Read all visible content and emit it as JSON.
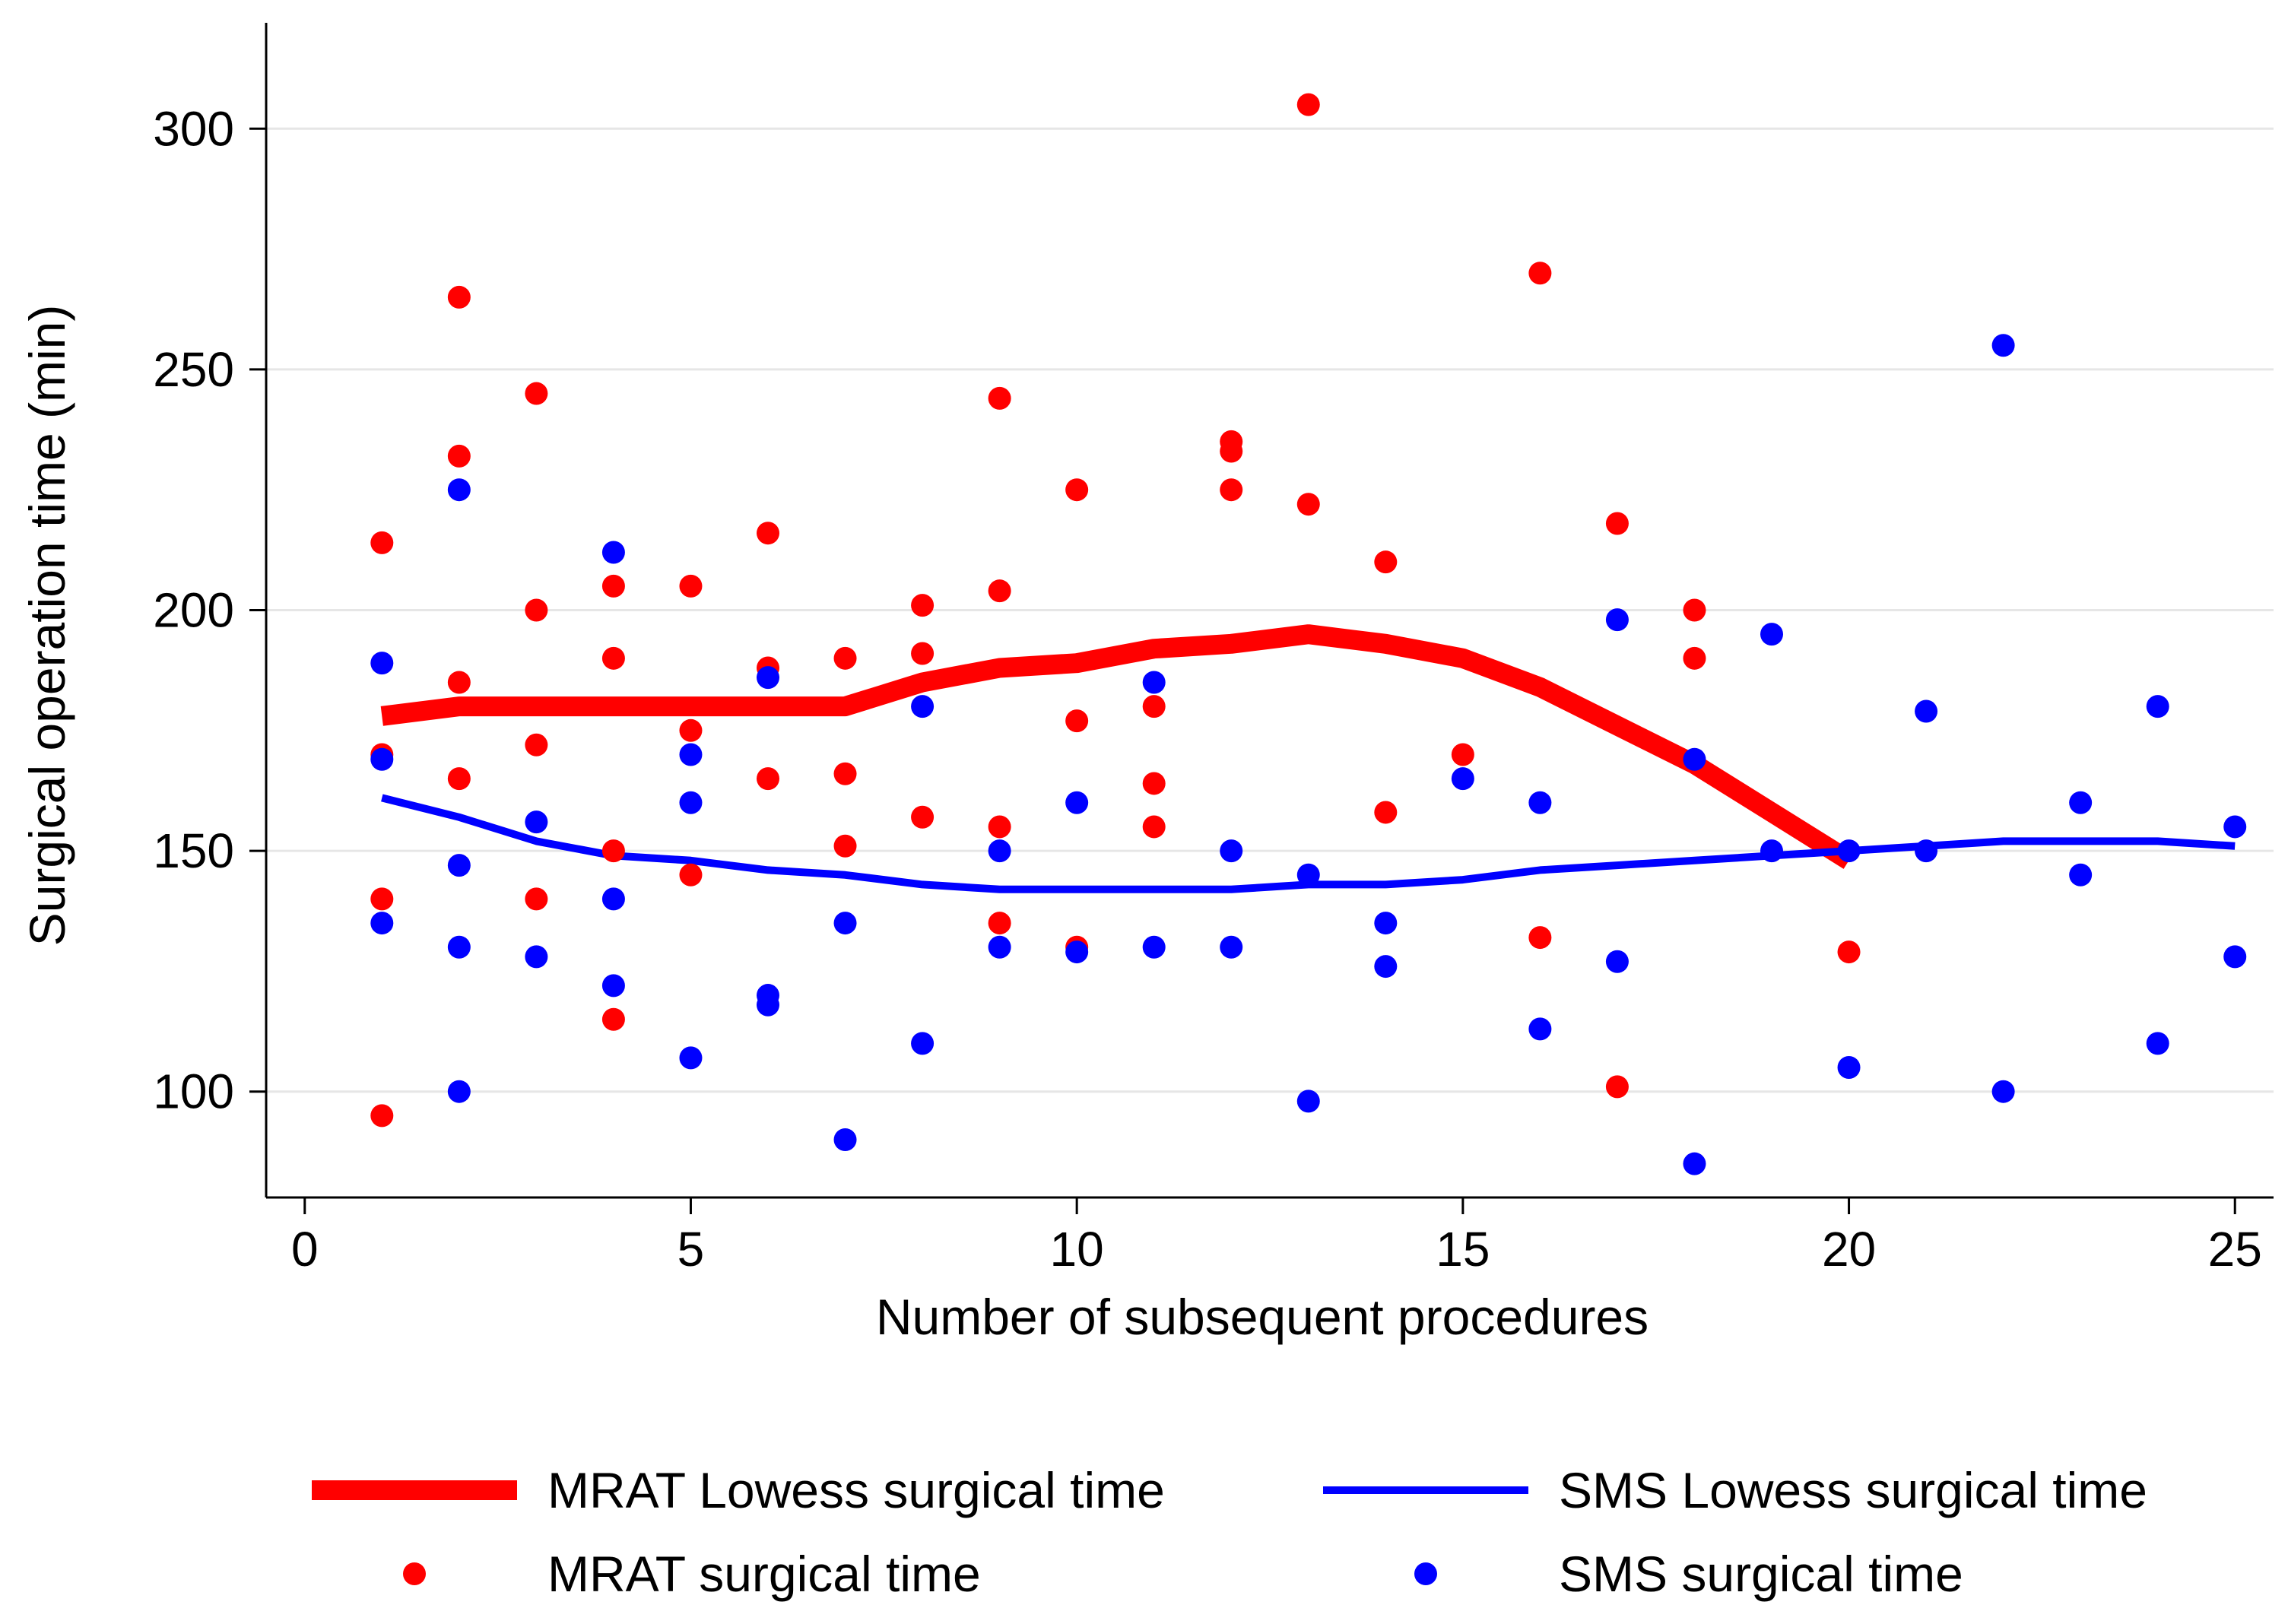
{
  "chart_data": {
    "type": "scatter",
    "title": "",
    "xlabel": "Number of subsequent procedures",
    "ylabel": "Surgical operation time (min)",
    "xlim": [
      -0.5,
      25.5
    ],
    "ylim": [
      78,
      322
    ],
    "xticks": [
      0,
      5,
      10,
      15,
      20,
      25
    ],
    "yticks": [
      100,
      150,
      200,
      250,
      300
    ],
    "grid": true,
    "colors": {
      "mrat": "#ff0000",
      "sms": "#0000ff",
      "grid": "#e6e6e6",
      "axis": "#000000"
    },
    "series": [
      {
        "name": "MRAT Lowess surgical time",
        "kind": "line",
        "color": "#ff0000",
        "x": [
          1,
          2,
          3,
          4,
          5,
          6,
          7,
          8,
          9,
          10,
          11,
          12,
          13,
          14,
          15,
          16,
          17,
          18,
          19,
          20
        ],
        "y": [
          178,
          180,
          180,
          180,
          180,
          180,
          180,
          185,
          188,
          189,
          192,
          193,
          195,
          193,
          190,
          184,
          176,
          168,
          158,
          148
        ]
      },
      {
        "name": "SMS Lowess surgical time",
        "kind": "line",
        "color": "#0000ff",
        "x": [
          1,
          2,
          3,
          4,
          5,
          6,
          7,
          8,
          9,
          10,
          11,
          12,
          13,
          14,
          15,
          16,
          17,
          18,
          19,
          20,
          21,
          22,
          23,
          24,
          25
        ],
        "y": [
          161,
          157,
          152,
          149,
          148,
          146,
          145,
          143,
          142,
          142,
          142,
          142,
          143,
          143,
          144,
          146,
          147,
          148,
          149,
          150,
          151,
          152,
          152,
          152,
          151
        ]
      },
      {
        "name": "MRAT surgical time",
        "kind": "scatter",
        "color": "#ff0000",
        "points": [
          [
            1,
            214
          ],
          [
            1,
            170
          ],
          [
            1,
            140
          ],
          [
            1,
            95
          ],
          [
            2,
            265
          ],
          [
            2,
            232
          ],
          [
            2,
            185
          ],
          [
            2,
            165
          ],
          [
            3,
            245
          ],
          [
            3,
            200
          ],
          [
            3,
            172
          ],
          [
            3,
            140
          ],
          [
            4,
            205
          ],
          [
            4,
            190
          ],
          [
            4,
            150
          ],
          [
            4,
            115
          ],
          [
            5,
            205
          ],
          [
            5,
            175
          ],
          [
            5,
            145
          ],
          [
            6,
            216
          ],
          [
            6,
            188
          ],
          [
            6,
            165
          ],
          [
            7,
            190
          ],
          [
            7,
            166
          ],
          [
            7,
            151
          ],
          [
            8,
            201
          ],
          [
            8,
            191
          ],
          [
            8,
            157
          ],
          [
            9,
            244
          ],
          [
            9,
            204
          ],
          [
            9,
            155
          ],
          [
            9,
            135
          ],
          [
            10,
            225
          ],
          [
            10,
            177
          ],
          [
            10,
            130
          ],
          [
            11,
            180
          ],
          [
            11,
            164
          ],
          [
            11,
            155
          ],
          [
            12,
            235
          ],
          [
            12,
            233
          ],
          [
            12,
            225
          ],
          [
            13,
            305
          ],
          [
            13,
            222
          ],
          [
            14,
            210
          ],
          [
            14,
            158
          ],
          [
            15,
            170
          ],
          [
            16,
            270
          ],
          [
            16,
            132
          ],
          [
            17,
            218
          ],
          [
            17,
            101
          ],
          [
            18,
            200
          ],
          [
            18,
            190
          ],
          [
            20,
            129
          ]
        ]
      },
      {
        "name": "SMS surgical time",
        "kind": "scatter",
        "color": "#0000ff",
        "points": [
          [
            1,
            189
          ],
          [
            1,
            169
          ],
          [
            1,
            135
          ],
          [
            2,
            225
          ],
          [
            2,
            147
          ],
          [
            2,
            130
          ],
          [
            2,
            100
          ],
          [
            3,
            156
          ],
          [
            3,
            128
          ],
          [
            4,
            212
          ],
          [
            4,
            140
          ],
          [
            4,
            122
          ],
          [
            5,
            170
          ],
          [
            5,
            160
          ],
          [
            5,
            107
          ],
          [
            6,
            186
          ],
          [
            6,
            120
          ],
          [
            6,
            118
          ],
          [
            7,
            135
          ],
          [
            7,
            90
          ],
          [
            8,
            180
          ],
          [
            8,
            110
          ],
          [
            9,
            150
          ],
          [
            9,
            130
          ],
          [
            10,
            160
          ],
          [
            10,
            129
          ],
          [
            11,
            185
          ],
          [
            11,
            130
          ],
          [
            12,
            150
          ],
          [
            12,
            130
          ],
          [
            13,
            145
          ],
          [
            13,
            98
          ],
          [
            14,
            135
          ],
          [
            14,
            126
          ],
          [
            15,
            165
          ],
          [
            16,
            160
          ],
          [
            16,
            113
          ],
          [
            17,
            198
          ],
          [
            17,
            127
          ],
          [
            18,
            169
          ],
          [
            18,
            85
          ],
          [
            19,
            195
          ],
          [
            19,
            150
          ],
          [
            20,
            150
          ],
          [
            20,
            105
          ],
          [
            21,
            179
          ],
          [
            21,
            150
          ],
          [
            22,
            255
          ],
          [
            22,
            100
          ],
          [
            23,
            160
          ],
          [
            23,
            145
          ],
          [
            24,
            180
          ],
          [
            24,
            110
          ],
          [
            25,
            155
          ],
          [
            25,
            128
          ]
        ]
      }
    ],
    "legend": {
      "position": "bottom",
      "columns": 2,
      "entries": [
        {
          "label": "MRAT Lowess surgical time",
          "symbol": "thick-line",
          "color": "#ff0000"
        },
        {
          "label": "SMS Lowess surgical time",
          "symbol": "line",
          "color": "#0000ff"
        },
        {
          "label": "MRAT surgical time",
          "symbol": "dot",
          "color": "#ff0000"
        },
        {
          "label": "SMS surgical time",
          "symbol": "dot",
          "color": "#0000ff"
        }
      ]
    }
  }
}
